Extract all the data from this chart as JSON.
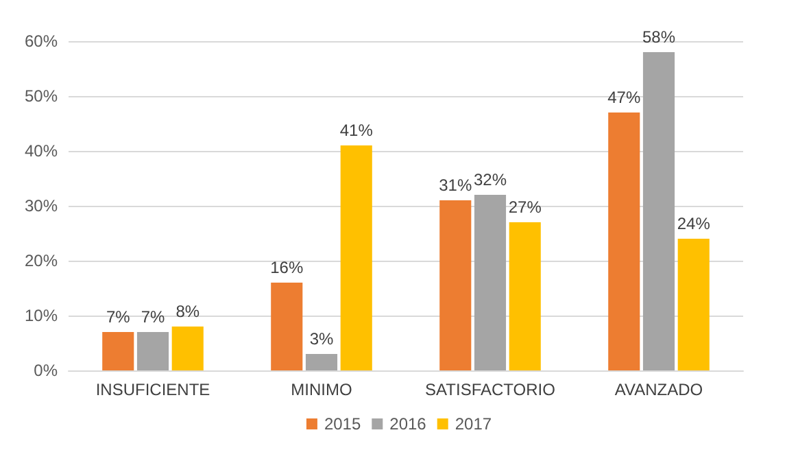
{
  "chart_data": {
    "type": "bar",
    "categories": [
      "INSUFICIENTE",
      "MINIMO",
      "SATISFACTORIO",
      "AVANZADO"
    ],
    "series": [
      {
        "name": "2015",
        "color": "#ed7d31",
        "values": [
          7,
          16,
          31,
          47
        ],
        "value_labels": [
          "7%",
          "16%",
          "31%",
          "47%"
        ]
      },
      {
        "name": "2016",
        "color": "#a5a5a5",
        "values": [
          7,
          3,
          32,
          58
        ],
        "value_labels": [
          "7%",
          "3%",
          "32%",
          "58%"
        ]
      },
      {
        "name": "2017",
        "color": "#ffc000",
        "values": [
          8,
          41,
          27,
          24
        ],
        "value_labels": [
          "8%",
          "41%",
          "27%",
          "24%"
        ]
      }
    ],
    "ylim": [
      0,
      60
    ],
    "yticks": [
      {
        "value": 0,
        "label": "0%"
      },
      {
        "value": 10,
        "label": "10%"
      },
      {
        "value": 20,
        "label": "20%"
      },
      {
        "value": 30,
        "label": "30%"
      },
      {
        "value": 40,
        "label": "40%"
      },
      {
        "value": 50,
        "label": "50%"
      },
      {
        "value": 60,
        "label": "60%"
      }
    ],
    "grid": "y",
    "legend": "bottom"
  }
}
